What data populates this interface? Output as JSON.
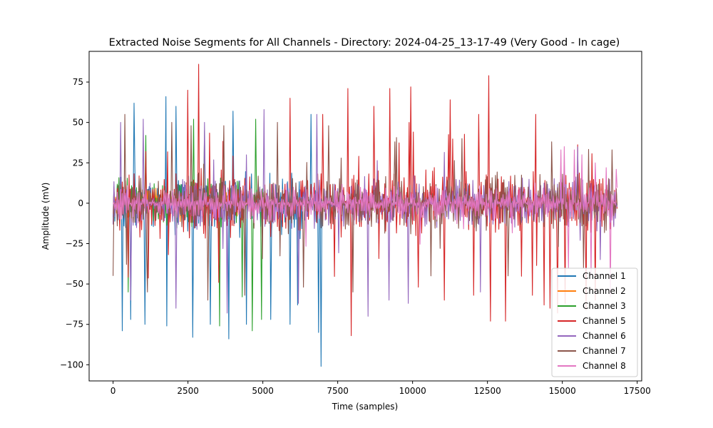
{
  "chart_data": {
    "type": "line",
    "title": "Extracted Noise Segments for All Channels - Directory: 2024-04-25_13-17-49 (Very Good - In cage)",
    "xlabel": "Time (samples)",
    "ylabel": "Amplitude (mV)",
    "xlim": [
      -800,
      17650
    ],
    "ylim": [
      -110,
      94
    ],
    "xticks": [
      0,
      2500,
      5000,
      7500,
      10000,
      12500,
      15000,
      17500
    ],
    "xtick_labels": [
      "0",
      "2500",
      "5000",
      "7500",
      "10000",
      "12500",
      "15000",
      "17500"
    ],
    "yticks": [
      -100,
      -75,
      -50,
      -25,
      0,
      25,
      50,
      75
    ],
    "ytick_labels": [
      "−100",
      "−75",
      "−50",
      "−25",
      "0",
      "25",
      "50",
      "75"
    ],
    "grid": false,
    "legend_position": "lower-right",
    "series": [
      {
        "name": "Channel 1",
        "color": "#1f77b4",
        "x_end": 7000,
        "base_amp": 22,
        "spikes": [
          [
            300,
            -79
          ],
          [
            600,
            -72
          ],
          [
            700,
            62
          ],
          [
            1050,
            -75
          ],
          [
            1750,
            66
          ],
          [
            1800,
            -76
          ],
          [
            2100,
            60
          ],
          [
            2650,
            -83
          ],
          [
            3250,
            -75
          ],
          [
            3850,
            -84
          ],
          [
            4000,
            57
          ],
          [
            4450,
            -75
          ],
          [
            5250,
            -72
          ],
          [
            5900,
            -75
          ],
          [
            6150,
            -63
          ],
          [
            6600,
            55
          ],
          [
            6950,
            -101
          ],
          [
            6850,
            -80
          ]
        ]
      },
      {
        "name": "Channel 2",
        "color": "#ff7f0e",
        "x_end": 5000,
        "base_amp": 12,
        "spikes": []
      },
      {
        "name": "Channel 3",
        "color": "#2ca02c",
        "x_end": 5000,
        "base_amp": 18,
        "spikes": [
          [
            500,
            -55
          ],
          [
            1100,
            42
          ],
          [
            2700,
            52
          ],
          [
            3050,
            45
          ],
          [
            3550,
            -76
          ],
          [
            4300,
            -58
          ],
          [
            4650,
            -79
          ],
          [
            4750,
            52
          ],
          [
            4950,
            -72
          ]
        ]
      },
      {
        "name": "Channel 5",
        "color": "#d62728",
        "x_end": 16850,
        "base_amp": 24,
        "spikes": [
          [
            2500,
            70
          ],
          [
            2850,
            86
          ],
          [
            5900,
            65
          ],
          [
            7000,
            55
          ],
          [
            7850,
            71
          ],
          [
            7950,
            -82
          ],
          [
            8700,
            60
          ],
          [
            9250,
            71
          ],
          [
            9950,
            72
          ],
          [
            10200,
            -52
          ],
          [
            11050,
            -60
          ],
          [
            11250,
            64
          ],
          [
            12050,
            -57
          ],
          [
            12200,
            55
          ],
          [
            12550,
            79
          ],
          [
            12600,
            -73
          ],
          [
            13100,
            -73
          ],
          [
            14000,
            -57
          ],
          [
            14100,
            55
          ],
          [
            14400,
            -63
          ],
          [
            14600,
            -65
          ],
          [
            14850,
            -68
          ],
          [
            15100,
            -62
          ],
          [
            15800,
            -66
          ],
          [
            16100,
            -60
          ]
        ]
      },
      {
        "name": "Channel 6",
        "color": "#9467bd",
        "x_end": 16850,
        "base_amp": 18,
        "spikes": [
          [
            250,
            50
          ],
          [
            600,
            -60
          ],
          [
            1000,
            52
          ],
          [
            2100,
            -65
          ],
          [
            3050,
            50
          ],
          [
            3800,
            -68
          ],
          [
            5050,
            58
          ],
          [
            6200,
            -62
          ],
          [
            6800,
            55
          ],
          [
            8500,
            -70
          ],
          [
            9200,
            -60
          ],
          [
            9850,
            -62
          ],
          [
            12250,
            -55
          ]
        ]
      },
      {
        "name": "Channel 7",
        "color": "#8c564b",
        "x_end": 16850,
        "base_amp": 20,
        "spikes": [
          [
            0,
            -45
          ],
          [
            400,
            55
          ],
          [
            1150,
            -55
          ],
          [
            1950,
            50
          ],
          [
            2600,
            48
          ],
          [
            3150,
            -60
          ],
          [
            3700,
            48
          ],
          [
            4400,
            -57
          ],
          [
            5500,
            50
          ],
          [
            6350,
            -52
          ],
          [
            7200,
            48
          ],
          [
            8000,
            -55
          ],
          [
            9400,
            38
          ],
          [
            10600,
            -45
          ],
          [
            11650,
            40
          ],
          [
            13200,
            -45
          ],
          [
            14650,
            38
          ],
          [
            15700,
            -40
          ],
          [
            16650,
            33
          ]
        ]
      },
      {
        "name": "Channel 8",
        "color": "#e377c2",
        "x_end": 16850,
        "base_amp": 13,
        "spikes": [
          [
            14950,
            33
          ],
          [
            15050,
            35
          ],
          [
            15200,
            -40
          ],
          [
            15400,
            33
          ],
          [
            15650,
            30
          ],
          [
            15950,
            -45
          ],
          [
            16100,
            25
          ],
          [
            16450,
            22
          ],
          [
            16600,
            -58
          ],
          [
            16800,
            21
          ]
        ]
      }
    ]
  }
}
